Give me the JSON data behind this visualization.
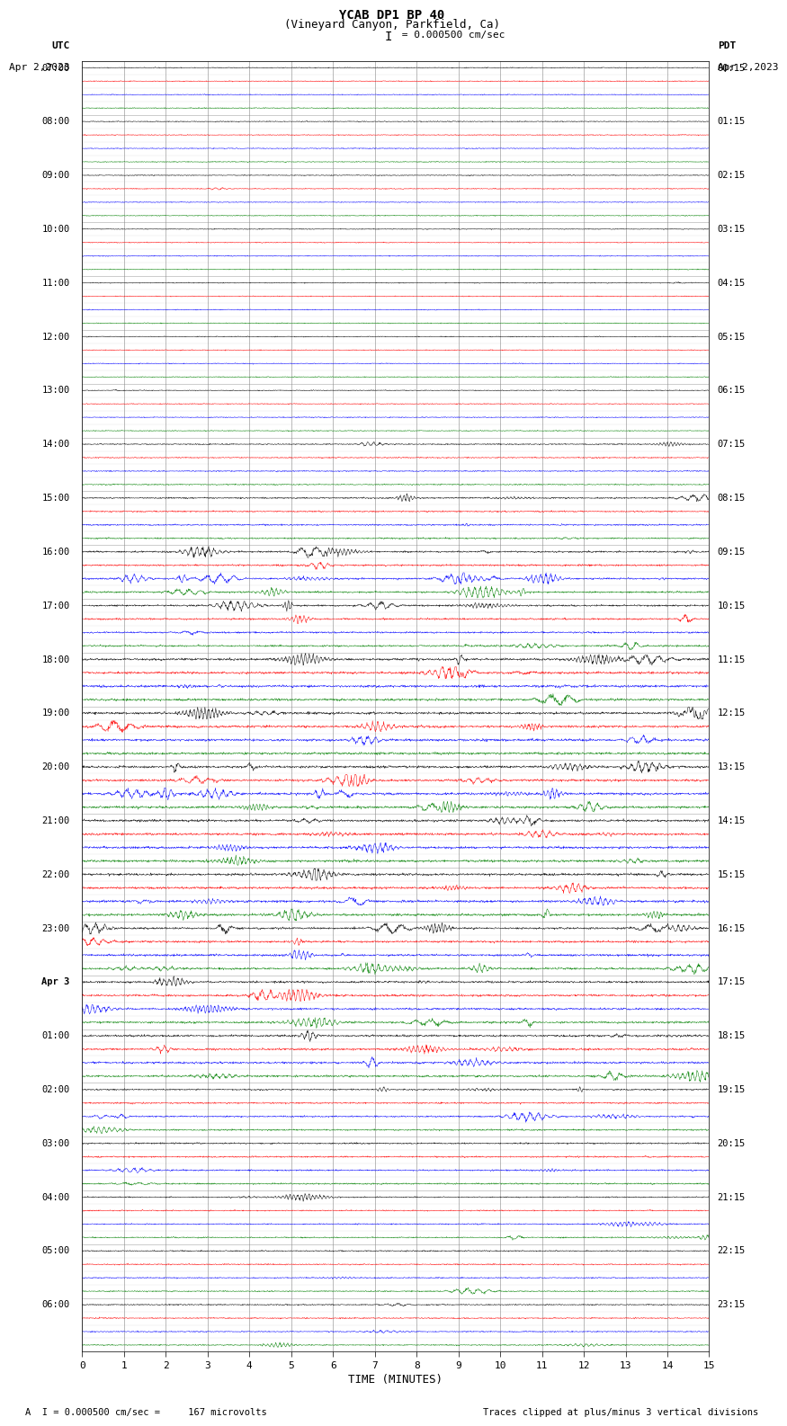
{
  "title_line1": "YCAB DP1 BP 40",
  "title_line2": "(Vineyard Canyon, Parkfield, Ca)",
  "scale_bar_text": "I = 0.000500 cm/sec",
  "left_label_top": "UTC",
  "left_label_date": "Apr 2,2023",
  "right_label_top": "PDT",
  "right_label_date": "Apr 2,2023",
  "xlabel": "TIME (MINUTES)",
  "footer_left": "A  I = 0.000500 cm/sec =     167 microvolts",
  "footer_right": "Traces clipped at plus/minus 3 vertical divisions",
  "xlim": [
    0,
    15
  ],
  "xticks": [
    0,
    1,
    2,
    3,
    4,
    5,
    6,
    7,
    8,
    9,
    10,
    11,
    12,
    13,
    14,
    15
  ],
  "background_color": "#ffffff",
  "grid_color": "#aaaaaa",
  "trace_colors": [
    "black",
    "red",
    "blue",
    "green"
  ],
  "left_times": [
    "07:00",
    "",
    "",
    "",
    "08:00",
    "",
    "",
    "",
    "09:00",
    "",
    "",
    "",
    "10:00",
    "",
    "",
    "",
    "11:00",
    "",
    "",
    "",
    "12:00",
    "",
    "",
    "",
    "13:00",
    "",
    "",
    "",
    "14:00",
    "",
    "",
    "",
    "15:00",
    "",
    "",
    "",
    "16:00",
    "",
    "",
    "",
    "17:00",
    "",
    "",
    "",
    "18:00",
    "",
    "",
    "",
    "19:00",
    "",
    "",
    "",
    "20:00",
    "",
    "",
    "",
    "21:00",
    "",
    "",
    "",
    "22:00",
    "",
    "",
    "",
    "23:00",
    "",
    "",
    "",
    "Apr 3",
    "",
    "",
    "",
    "01:00",
    "",
    "",
    "",
    "02:00",
    "",
    "",
    "",
    "03:00",
    "",
    "",
    "",
    "04:00",
    "",
    "",
    "",
    "05:00",
    "",
    "",
    "",
    "06:00",
    "",
    "",
    ""
  ],
  "right_times": [
    "00:15",
    "",
    "",
    "",
    "01:15",
    "",
    "",
    "",
    "02:15",
    "",
    "",
    "",
    "03:15",
    "",
    "",
    "",
    "04:15",
    "",
    "",
    "",
    "05:15",
    "",
    "",
    "",
    "06:15",
    "",
    "",
    "",
    "07:15",
    "",
    "",
    "",
    "08:15",
    "",
    "",
    "",
    "09:15",
    "",
    "",
    "",
    "10:15",
    "",
    "",
    "",
    "11:15",
    "",
    "",
    "",
    "12:15",
    "",
    "",
    "",
    "13:15",
    "",
    "",
    "",
    "14:15",
    "",
    "",
    "",
    "15:15",
    "",
    "",
    "",
    "16:15",
    "",
    "",
    "",
    "17:15",
    "",
    "",
    "",
    "18:15",
    "",
    "",
    "",
    "19:15",
    "",
    "",
    "",
    "20:15",
    "",
    "",
    "",
    "21:15",
    "",
    "",
    "",
    "22:15",
    "",
    "",
    "",
    "23:15",
    "",
    "",
    ""
  ],
  "num_rows": 96,
  "seed": 42
}
